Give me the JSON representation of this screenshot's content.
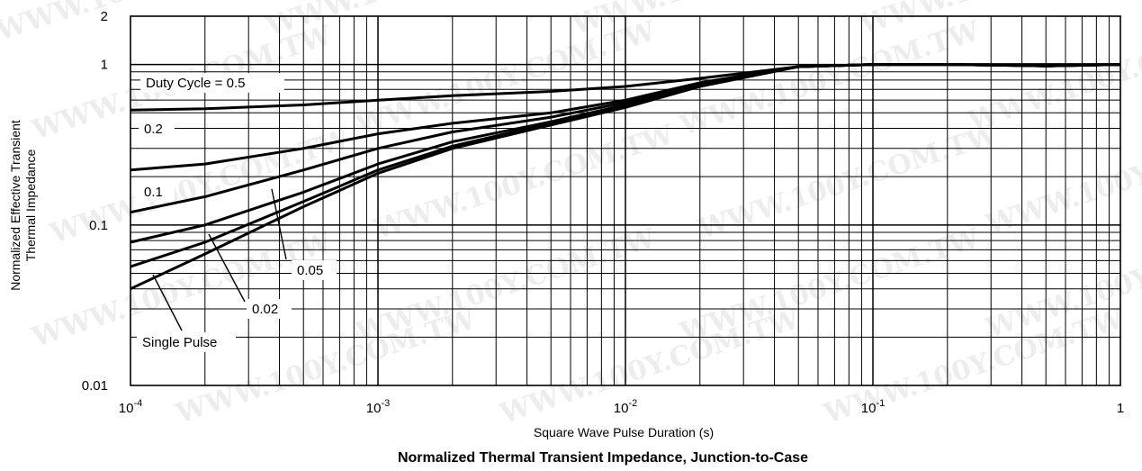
{
  "chart_data": {
    "type": "line",
    "title": "Normalized Thermal Transient Impedance, Junction-to-Case",
    "xlabel": "Square Wave Pulse Duration (s)",
    "ylabel_lines": [
      "Normalized Effective Transient",
      "Thermal Impedance"
    ],
    "xscale": "log",
    "yscale": "log",
    "xlim": [
      0.0001,
      1
    ],
    "ylim": [
      0.01,
      2
    ],
    "grid": true,
    "x_ticks": [
      {
        "base": "10",
        "exp": "-4"
      },
      {
        "base": "10",
        "exp": "-3"
      },
      {
        "base": "10",
        "exp": "-2"
      },
      {
        "base": "10",
        "exp": "-1"
      },
      {
        "base": "1",
        "exp": ""
      }
    ],
    "y_ticks": [
      "0.01",
      "0.1",
      "1",
      "2"
    ],
    "series": [
      {
        "name": "Duty Cycle = 0.5",
        "x": [
          0.0001,
          0.0002,
          0.0005,
          0.001,
          0.002,
          0.005,
          0.01,
          0.02,
          0.05,
          0.1,
          0.2,
          0.5,
          1
        ],
        "y": [
          0.52,
          0.53,
          0.56,
          0.6,
          0.64,
          0.68,
          0.73,
          0.82,
          0.97,
          1.0,
          1.0,
          1.0,
          1.0
        ]
      },
      {
        "name": "0.2",
        "x": [
          0.0001,
          0.0002,
          0.0005,
          0.001,
          0.002,
          0.005,
          0.01,
          0.02,
          0.05,
          0.1,
          0.2,
          0.5,
          1
        ],
        "y": [
          0.22,
          0.24,
          0.3,
          0.37,
          0.43,
          0.5,
          0.6,
          0.77,
          0.97,
          1.0,
          1.0,
          0.99,
          1.0
        ]
      },
      {
        "name": "0.1",
        "x": [
          0.0001,
          0.0002,
          0.0005,
          0.001,
          0.002,
          0.005,
          0.01,
          0.02,
          0.05,
          0.1,
          0.2,
          0.5,
          1
        ],
        "y": [
          0.12,
          0.15,
          0.22,
          0.3,
          0.38,
          0.47,
          0.58,
          0.76,
          0.97,
          1.0,
          1.0,
          0.98,
          1.0
        ]
      },
      {
        "name": "0.05",
        "x": [
          0.0001,
          0.0002,
          0.0005,
          0.001,
          0.002,
          0.005,
          0.01,
          0.02,
          0.05,
          0.1,
          0.2,
          0.5,
          1
        ],
        "y": [
          0.078,
          0.1,
          0.16,
          0.24,
          0.33,
          0.44,
          0.56,
          0.75,
          0.97,
          1.0,
          1.0,
          0.98,
          1.0
        ]
      },
      {
        "name": "0.02",
        "x": [
          0.0001,
          0.0002,
          0.0005,
          0.001,
          0.002,
          0.005,
          0.01,
          0.02,
          0.05,
          0.1,
          0.2,
          0.5,
          1
        ],
        "y": [
          0.055,
          0.078,
          0.14,
          0.22,
          0.31,
          0.43,
          0.55,
          0.74,
          0.97,
          1.0,
          1.0,
          0.98,
          1.0
        ]
      },
      {
        "name": "Single Pulse",
        "x": [
          0.0001,
          0.0002,
          0.0005,
          0.001,
          0.002,
          0.005,
          0.01,
          0.02,
          0.05,
          0.1,
          0.2,
          0.5,
          1
        ],
        "y": [
          0.04,
          0.066,
          0.13,
          0.21,
          0.3,
          0.42,
          0.54,
          0.73,
          0.97,
          1.0,
          1.0,
          0.98,
          1.0
        ]
      }
    ],
    "watermark": "WWW.100Y.COM.TW"
  }
}
